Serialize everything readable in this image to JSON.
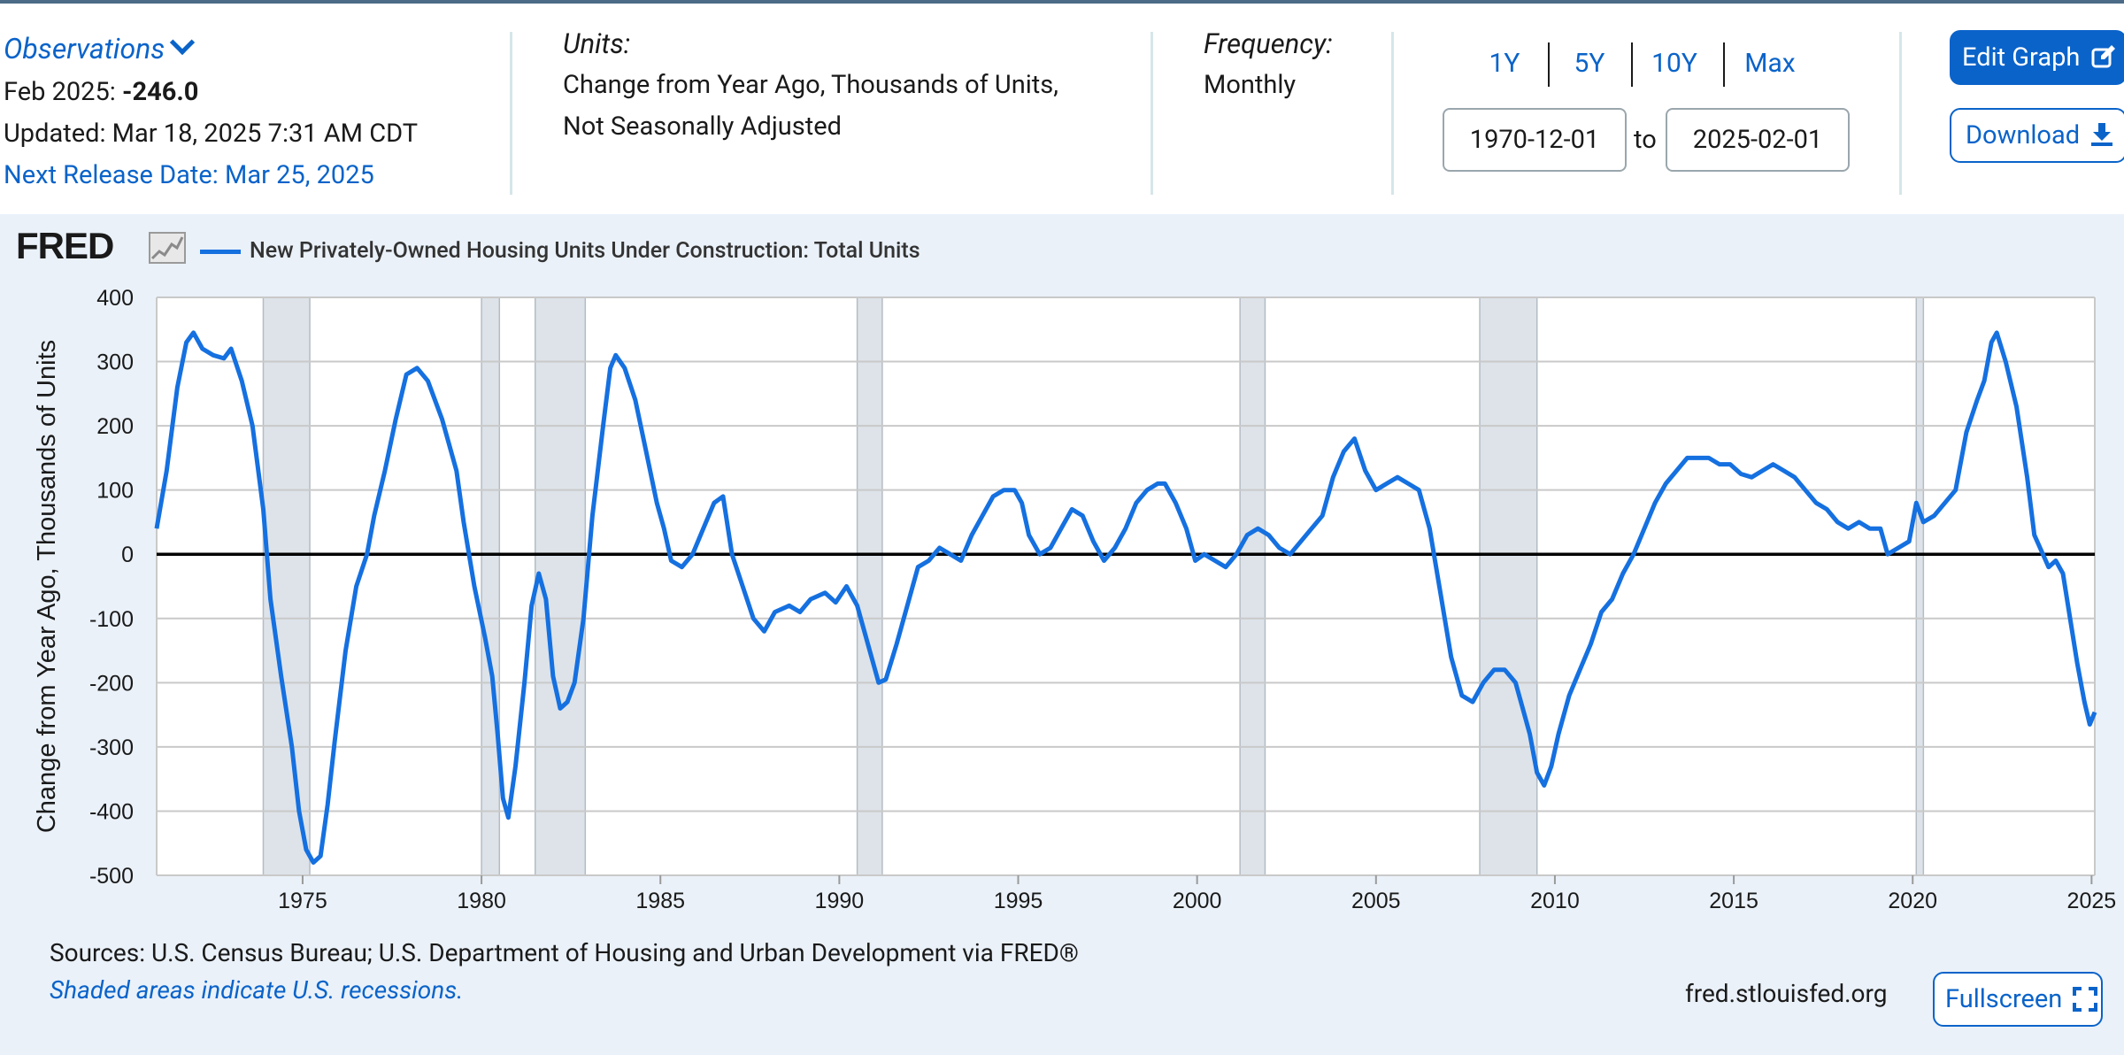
{
  "header": {
    "observations_label": "Observations",
    "obs_date_label": "Feb 2025:",
    "obs_value": "-246.0",
    "updated": "Updated: Mar 18, 2025 7:31 AM CDT",
    "next_release": "Next Release Date: Mar 25, 2025",
    "units_label": "Units:",
    "units_line1": "Change from Year Ago, Thousands of Units,",
    "units_line2": "Not Seasonally Adjusted",
    "frequency_label": "Frequency:",
    "frequency_value": "Monthly",
    "ranges": [
      "1Y",
      "5Y",
      "10Y",
      "Max"
    ],
    "date_from": "1970-12-01",
    "date_to_label": "to",
    "date_to": "2025-02-01",
    "edit_graph": "Edit Graph",
    "download": "Download"
  },
  "graph": {
    "logo": "FRED",
    "sources": "Sources: U.S. Census Bureau; U.S. Department of Housing and Urban Development via FRED®",
    "shaded_note": "Shaded areas indicate U.S. recessions.",
    "site": "fred.stlouisfed.org",
    "fullscreen": "Fullscreen"
  },
  "colors": {
    "line": "#1570e0",
    "recession": "#dde3e9",
    "plot_bg": "#ffffff",
    "grid": "#c9c9c9",
    "accent": "#0a63c9"
  },
  "chart_data": {
    "type": "line",
    "title": "",
    "ylabel": "Change from Year Ago, Thousands of Units",
    "xlabel": "",
    "ylim": [
      -500,
      400
    ],
    "xlim": [
      1970.92,
      2025.09
    ],
    "yticks": [
      400,
      300,
      200,
      100,
      0,
      -100,
      -200,
      -300,
      -400,
      -500
    ],
    "xticks": [
      1975,
      1980,
      1985,
      1990,
      1995,
      2000,
      2005,
      2010,
      2015,
      2020,
      2025
    ],
    "grid": true,
    "legend_position": "top-left",
    "recessions": [
      [
        1973.9,
        1975.2
      ],
      [
        1980.0,
        1980.5
      ],
      [
        1981.5,
        1982.9
      ],
      [
        1990.5,
        1991.2
      ],
      [
        2001.2,
        2001.9
      ],
      [
        2007.9,
        2009.5
      ],
      [
        2020.1,
        2020.3
      ]
    ],
    "series": [
      {
        "name": "New Privately-Owned Housing Units Under Construction: Total Units",
        "points": [
          [
            1970.92,
            40
          ],
          [
            1971.2,
            130
          ],
          [
            1971.5,
            260
          ],
          [
            1971.75,
            330
          ],
          [
            1971.95,
            345
          ],
          [
            1972.2,
            320
          ],
          [
            1972.5,
            310
          ],
          [
            1972.8,
            305
          ],
          [
            1973.0,
            320
          ],
          [
            1973.3,
            270
          ],
          [
            1973.6,
            200
          ],
          [
            1973.9,
            70
          ],
          [
            1974.1,
            -70
          ],
          [
            1974.4,
            -190
          ],
          [
            1974.7,
            -300
          ],
          [
            1974.9,
            -400
          ],
          [
            1975.1,
            -460
          ],
          [
            1975.3,
            -480
          ],
          [
            1975.5,
            -470
          ],
          [
            1975.7,
            -390
          ],
          [
            1975.9,
            -290
          ],
          [
            1976.2,
            -150
          ],
          [
            1976.5,
            -50
          ],
          [
            1976.8,
            0
          ],
          [
            1977.0,
            60
          ],
          [
            1977.3,
            130
          ],
          [
            1977.6,
            210
          ],
          [
            1977.9,
            280
          ],
          [
            1978.2,
            290
          ],
          [
            1978.5,
            270
          ],
          [
            1978.9,
            210
          ],
          [
            1979.3,
            130
          ],
          [
            1979.5,
            50
          ],
          [
            1979.8,
            -50
          ],
          [
            1980.1,
            -130
          ],
          [
            1980.3,
            -190
          ],
          [
            1980.45,
            -280
          ],
          [
            1980.6,
            -380
          ],
          [
            1980.75,
            -410
          ],
          [
            1980.95,
            -330
          ],
          [
            1981.2,
            -200
          ],
          [
            1981.4,
            -80
          ],
          [
            1981.6,
            -30
          ],
          [
            1981.8,
            -70
          ],
          [
            1982.0,
            -190
          ],
          [
            1982.2,
            -240
          ],
          [
            1982.4,
            -230
          ],
          [
            1982.6,
            -200
          ],
          [
            1982.85,
            -100
          ],
          [
            1983.1,
            60
          ],
          [
            1983.4,
            200
          ],
          [
            1983.6,
            290
          ],
          [
            1983.75,
            310
          ],
          [
            1984.0,
            290
          ],
          [
            1984.3,
            240
          ],
          [
            1984.6,
            160
          ],
          [
            1984.9,
            80
          ],
          [
            1985.1,
            40
          ],
          [
            1985.3,
            -10
          ],
          [
            1985.6,
            -20
          ],
          [
            1985.9,
            0
          ],
          [
            1986.2,
            40
          ],
          [
            1986.5,
            80
          ],
          [
            1986.75,
            90
          ],
          [
            1987.0,
            0
          ],
          [
            1987.3,
            -50
          ],
          [
            1987.6,
            -100
          ],
          [
            1987.9,
            -120
          ],
          [
            1988.2,
            -90
          ],
          [
            1988.6,
            -80
          ],
          [
            1988.9,
            -90
          ],
          [
            1989.2,
            -70
          ],
          [
            1989.6,
            -60
          ],
          [
            1989.9,
            -75
          ],
          [
            1990.2,
            -50
          ],
          [
            1990.5,
            -80
          ],
          [
            1990.8,
            -140
          ],
          [
            1991.1,
            -200
          ],
          [
            1991.3,
            -195
          ],
          [
            1991.6,
            -140
          ],
          [
            1991.9,
            -80
          ],
          [
            1992.2,
            -20
          ],
          [
            1992.5,
            -10
          ],
          [
            1992.8,
            10
          ],
          [
            1993.1,
            0
          ],
          [
            1993.4,
            -10
          ],
          [
            1993.7,
            30
          ],
          [
            1994.0,
            60
          ],
          [
            1994.3,
            90
          ],
          [
            1994.6,
            100
          ],
          [
            1994.9,
            100
          ],
          [
            1995.1,
            80
          ],
          [
            1995.3,
            30
          ],
          [
            1995.6,
            0
          ],
          [
            1995.9,
            10
          ],
          [
            1996.2,
            40
          ],
          [
            1996.5,
            70
          ],
          [
            1996.8,
            60
          ],
          [
            1997.1,
            20
          ],
          [
            1997.4,
            -10
          ],
          [
            1997.7,
            10
          ],
          [
            1998.0,
            40
          ],
          [
            1998.3,
            80
          ],
          [
            1998.6,
            100
          ],
          [
            1998.9,
            110
          ],
          [
            1999.1,
            110
          ],
          [
            1999.4,
            80
          ],
          [
            1999.7,
            40
          ],
          [
            1999.95,
            -10
          ],
          [
            2000.2,
            0
          ],
          [
            2000.5,
            -10
          ],
          [
            2000.8,
            -20
          ],
          [
            2001.1,
            0
          ],
          [
            2001.4,
            30
          ],
          [
            2001.7,
            40
          ],
          [
            2002.0,
            30
          ],
          [
            2002.3,
            10
          ],
          [
            2002.6,
            0
          ],
          [
            2002.9,
            20
          ],
          [
            2003.2,
            40
          ],
          [
            2003.5,
            60
          ],
          [
            2003.8,
            120
          ],
          [
            2004.1,
            160
          ],
          [
            2004.4,
            180
          ],
          [
            2004.7,
            130
          ],
          [
            2005.0,
            100
          ],
          [
            2005.3,
            110
          ],
          [
            2005.6,
            120
          ],
          [
            2005.9,
            110
          ],
          [
            2006.2,
            100
          ],
          [
            2006.5,
            40
          ],
          [
            2006.8,
            -60
          ],
          [
            2007.1,
            -160
          ],
          [
            2007.4,
            -220
          ],
          [
            2007.7,
            -230
          ],
          [
            2008.0,
            -200
          ],
          [
            2008.3,
            -180
          ],
          [
            2008.6,
            -180
          ],
          [
            2008.9,
            -200
          ],
          [
            2009.1,
            -240
          ],
          [
            2009.3,
            -280
          ],
          [
            2009.5,
            -340
          ],
          [
            2009.7,
            -360
          ],
          [
            2009.9,
            -330
          ],
          [
            2010.1,
            -280
          ],
          [
            2010.4,
            -220
          ],
          [
            2010.7,
            -180
          ],
          [
            2011.0,
            -140
          ],
          [
            2011.3,
            -90
          ],
          [
            2011.6,
            -70
          ],
          [
            2011.9,
            -30
          ],
          [
            2012.2,
            0
          ],
          [
            2012.5,
            40
          ],
          [
            2012.8,
            80
          ],
          [
            2013.1,
            110
          ],
          [
            2013.4,
            130
          ],
          [
            2013.7,
            150
          ],
          [
            2014.0,
            150
          ],
          [
            2014.3,
            150
          ],
          [
            2014.6,
            140
          ],
          [
            2014.9,
            140
          ],
          [
            2015.2,
            125
          ],
          [
            2015.5,
            120
          ],
          [
            2015.8,
            130
          ],
          [
            2016.1,
            140
          ],
          [
            2016.4,
            130
          ],
          [
            2016.7,
            120
          ],
          [
            2017.0,
            100
          ],
          [
            2017.3,
            80
          ],
          [
            2017.6,
            70
          ],
          [
            2017.9,
            50
          ],
          [
            2018.2,
            40
          ],
          [
            2018.5,
            50
          ],
          [
            2018.8,
            40
          ],
          [
            2019.1,
            40
          ],
          [
            2019.3,
            0
          ],
          [
            2019.6,
            10
          ],
          [
            2019.9,
            20
          ],
          [
            2020.1,
            80
          ],
          [
            2020.3,
            50
          ],
          [
            2020.6,
            60
          ],
          [
            2020.9,
            80
          ],
          [
            2021.2,
            100
          ],
          [
            2021.5,
            190
          ],
          [
            2021.8,
            240
          ],
          [
            2022.0,
            270
          ],
          [
            2022.2,
            330
          ],
          [
            2022.35,
            345
          ],
          [
            2022.6,
            300
          ],
          [
            2022.9,
            230
          ],
          [
            2023.2,
            120
          ],
          [
            2023.4,
            30
          ],
          [
            2023.6,
            5
          ],
          [
            2023.8,
            -20
          ],
          [
            2024.0,
            -10
          ],
          [
            2024.2,
            -30
          ],
          [
            2024.4,
            -100
          ],
          [
            2024.6,
            -170
          ],
          [
            2024.8,
            -230
          ],
          [
            2024.95,
            -265
          ],
          [
            2025.09,
            -246
          ]
        ]
      }
    ]
  }
}
